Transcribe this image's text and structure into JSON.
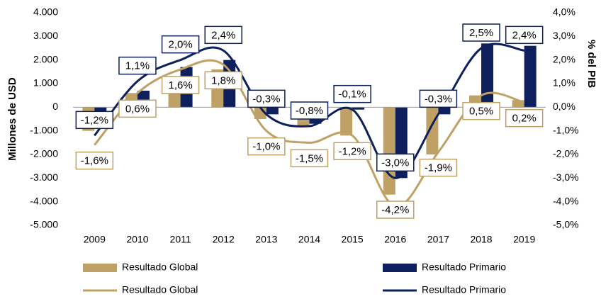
{
  "chart_data": {
    "type": "bar-line",
    "categories": [
      "2009",
      "2010",
      "2011",
      "2012",
      "2013",
      "2014",
      "2015",
      "2016",
      "2017",
      "2018",
      "2019"
    ],
    "ylabel": "Millones de USD",
    "y2label": "% del PIB",
    "ylim": [
      -5000,
      4000
    ],
    "yticks": [
      {
        "value": -5000,
        "label": "-5.000"
      },
      {
        "value": -4000,
        "label": "-4.000"
      },
      {
        "value": -3000,
        "label": "-3.000"
      },
      {
        "value": -2000,
        "label": "-2.000"
      },
      {
        "value": -1000,
        "label": "-1.000"
      },
      0,
      {
        "value": 1000,
        "label": "1.000"
      },
      {
        "value": 2000,
        "label": "2.000"
      },
      {
        "value": 3000,
        "label": "3.000"
      },
      {
        "value": 4000,
        "label": "4.000"
      }
    ],
    "y2lim": [
      -5,
      4
    ],
    "y2ticks": [
      {
        "value": -5,
        "label": "-5,0%"
      },
      {
        "value": -4,
        "label": "-4,0%"
      },
      {
        "value": -3,
        "label": "-3,0%"
      },
      {
        "value": -2,
        "label": "-2,0%"
      },
      {
        "value": -1,
        "label": "-1,0%"
      },
      {
        "value": 0,
        "label": "0,0%"
      },
      {
        "value": 1,
        "label": "1,0%"
      },
      {
        "value": 2,
        "label": "2,0%"
      },
      {
        "value": 3,
        "label": "3,0%"
      },
      {
        "value": 4,
        "label": "4,0%"
      }
    ],
    "series": [
      {
        "name": "Resultado Global",
        "type": "bar",
        "color": "#bfa165",
        "values": [
          -1000,
          600,
          1300,
          1600,
          -500,
          -800,
          -1200,
          -3700,
          -2000,
          500,
          300
        ]
      },
      {
        "name": "Resultado Primario",
        "type": "bar",
        "color": "#0d1f5c",
        "values": [
          -300,
          700,
          1700,
          2000,
          -300,
          -700,
          -100,
          -3000,
          -300,
          2700,
          2600
        ]
      },
      {
        "name": "Resultado Global",
        "type": "line",
        "axis": "y2",
        "color": "#bfa165",
        "values": [
          -1.6,
          0.6,
          1.6,
          1.8,
          -1.0,
          -1.5,
          -1.2,
          -4.2,
          -1.9,
          0.5,
          0.2
        ],
        "value_labels": [
          "-1,6%",
          "0,6%",
          "1,6%",
          "1,8%",
          "-1,0%",
          "-1,5%",
          "-1,2%",
          "-4,2%",
          "-1,9%",
          "0,5%",
          "0,2%"
        ]
      },
      {
        "name": "Resultado Primario",
        "type": "line",
        "axis": "y2",
        "color": "#0d1f5c",
        "values": [
          -1.2,
          1.1,
          2.0,
          2.4,
          -0.3,
          -0.8,
          -0.1,
          -3.0,
          -0.3,
          2.5,
          2.4
        ],
        "value_labels": [
          "-1,2%",
          "1,1%",
          "2,0%",
          "2,4%",
          "-0,3%",
          "-0,8%",
          "-0,1%",
          "-3,0%",
          "-0,3%",
          "2,5%",
          "2,4%"
        ]
      }
    ]
  }
}
